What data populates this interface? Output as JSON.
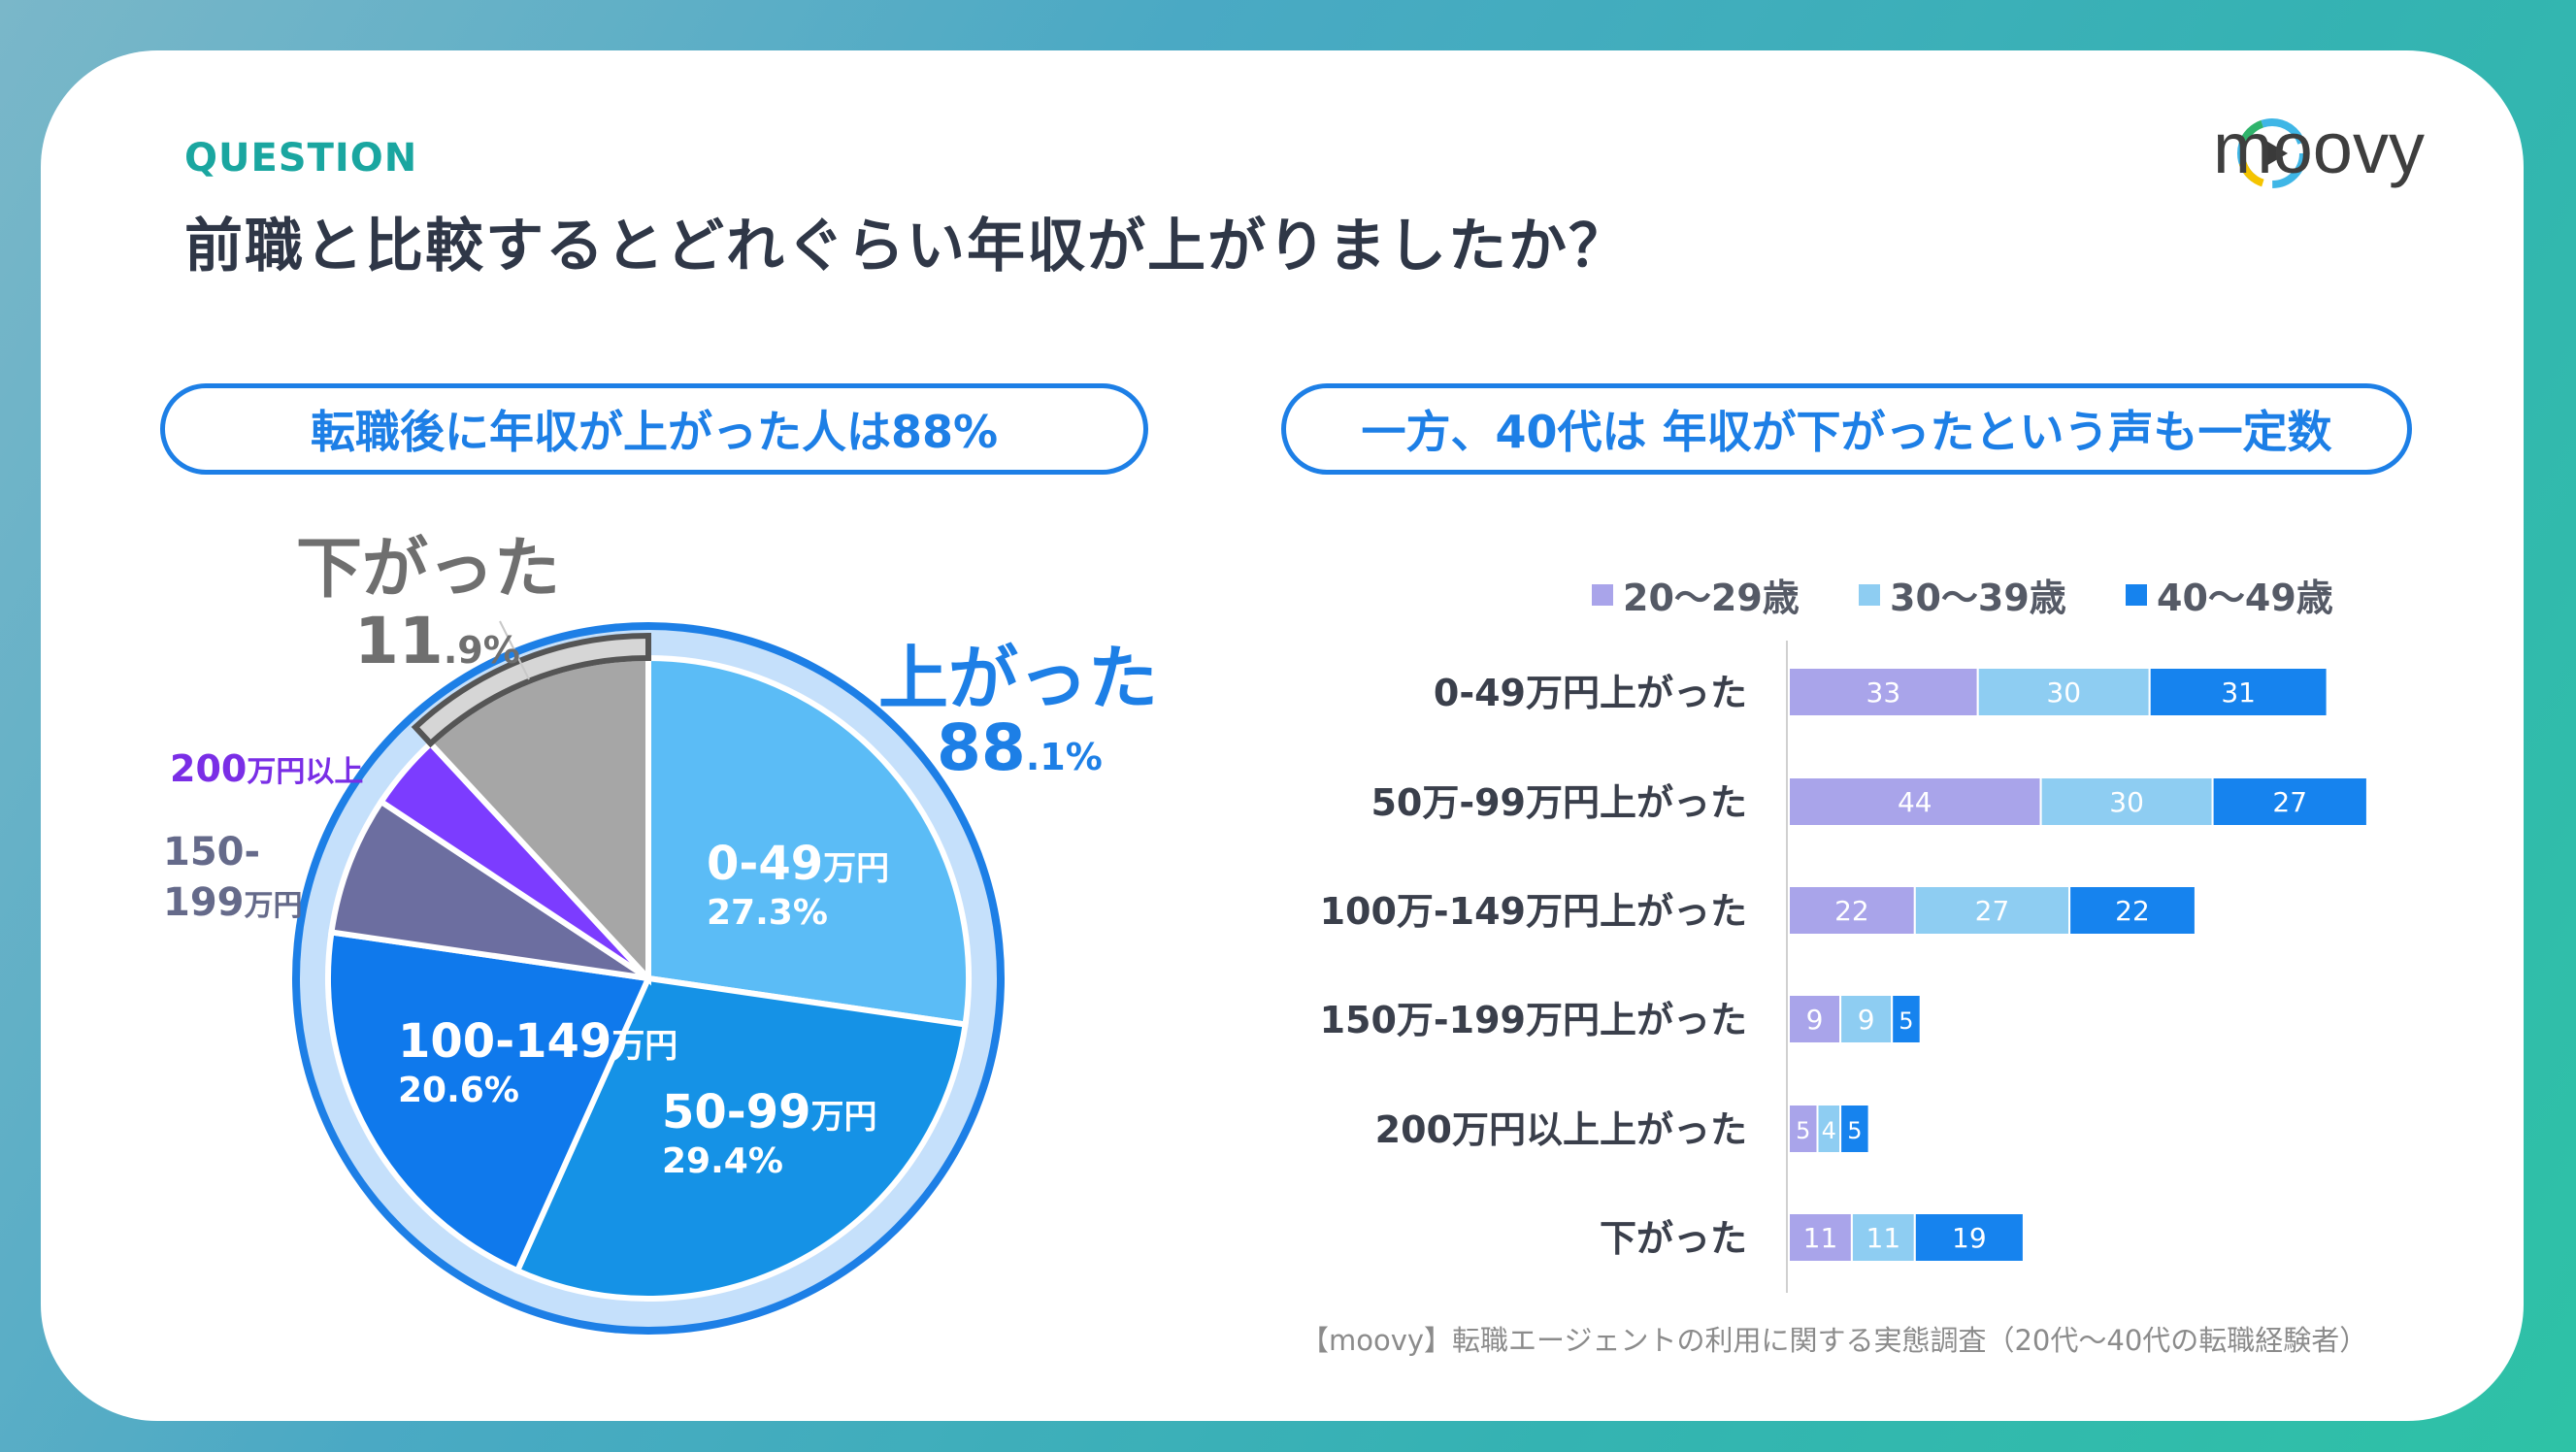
{
  "header": {
    "question_label": "QUESTION",
    "title": "前職と比較するとどれぐらい年収が上がりましたか？",
    "logo_text": "moovy"
  },
  "left_panel": {
    "pill_text": "転職後に年収が上がった人は88%",
    "up_label": "上がった",
    "up_value_int": "88",
    "up_value_dec": ".1%",
    "down_label": "下がった",
    "down_value_int": "11",
    "down_value_dec": ".9%",
    "over200_num": "200",
    "over200_unit": "万円以上",
    "r150_line1": "150-",
    "r150_line2_num": "199",
    "r150_line2_unit": "万円",
    "slice_a_name": "0-49",
    "slice_a_unit": "万円",
    "slice_a_pct": "27.3%",
    "slice_b_name": "50-99",
    "slice_b_unit": "万円",
    "slice_b_pct": "29.4%",
    "slice_c_name": "100-149",
    "slice_c_unit": "万円",
    "slice_c_pct": "20.6%"
  },
  "right_panel": {
    "pill_text": "一方、40代は 年収が下がったという声も一定数",
    "legend": [
      "20～29歳",
      "30～39歳",
      "40～49歳"
    ]
  },
  "source": "【moovy】転職エージェントの利用に関する実態調査（20代〜40代の転職経験者）",
  "colors": {
    "accent": "#1d7fe6",
    "teal": "#1aa6a0",
    "age20": "#a9a4ea",
    "age30": "#8ecdf2",
    "age40": "#1683ee"
  },
  "chart_data": [
    {
      "type": "pie",
      "title": "転職後に年収が上がった人は88%",
      "slices": [
        {
          "label": "0-49万円",
          "value": 27.3,
          "color": "#5bbcf6"
        },
        {
          "label": "50-99万円",
          "value": 29.4,
          "color": "#1592e6"
        },
        {
          "label": "100-149万円",
          "value": 20.6,
          "color": "#0f79ec"
        },
        {
          "label": "150-199万円",
          "value": 7.0,
          "color": "#6c6ea0"
        },
        {
          "label": "200万円以上",
          "value": 3.8,
          "color": "#7c3cff"
        },
        {
          "label": "下がった",
          "value": 11.9,
          "color": "#a6a6a6"
        }
      ],
      "groups": [
        {
          "label": "上がった",
          "value": 88.1
        },
        {
          "label": "下がった",
          "value": 11.9
        }
      ]
    },
    {
      "type": "bar",
      "orientation": "horizontal",
      "stacked": true,
      "title": "一方、40代は 年収が下がったという声も一定数",
      "categories": [
        "0-49万円上がった",
        "50万-99万円上がった",
        "100万-149万円上がった",
        "150万-199万円上がった",
        "200万円以上上がった",
        "下がった"
      ],
      "series": [
        {
          "name": "20～29歳",
          "values": [
            33,
            44,
            22,
            9,
            5,
            11
          ]
        },
        {
          "name": "30～39歳",
          "values": [
            30,
            30,
            27,
            9,
            4,
            11
          ]
        },
        {
          "name": "40～49歳",
          "values": [
            31,
            27,
            22,
            5,
            5,
            19
          ]
        }
      ],
      "legend": "top"
    }
  ]
}
